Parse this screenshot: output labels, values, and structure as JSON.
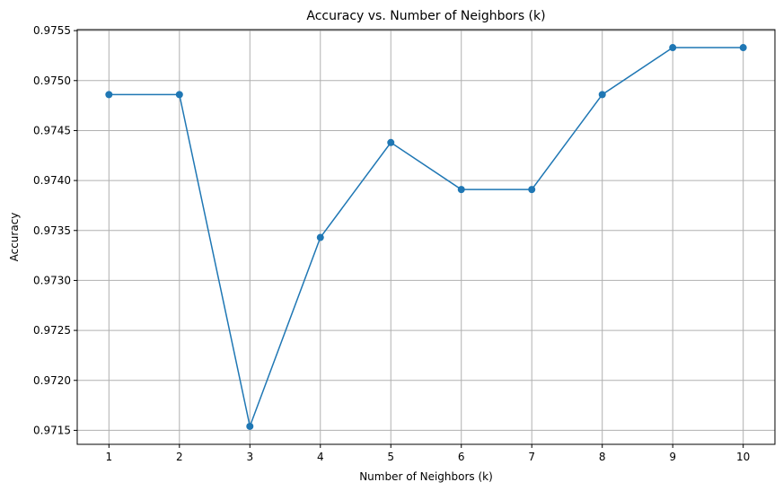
{
  "chart_data": {
    "type": "line",
    "title": "Accuracy vs. Number of Neighbors (k)",
    "xlabel": "Number of Neighbors (k)",
    "ylabel": "Accuracy",
    "x": [
      1,
      2,
      3,
      4,
      5,
      6,
      7,
      8,
      9,
      10
    ],
    "series": [
      {
        "values": [
          0.97486,
          0.97486,
          0.97154,
          0.97343,
          0.97438,
          0.97391,
          0.97391,
          0.97486,
          0.97533,
          0.97533
        ]
      }
    ],
    "xticks": [
      "1",
      "2",
      "3",
      "4",
      "5",
      "6",
      "7",
      "8",
      "9",
      "10"
    ],
    "yticks": [
      0.9715,
      0.972,
      0.9725,
      0.973,
      0.9735,
      0.974,
      0.9745,
      0.975,
      0.9755
    ],
    "ytick_labels": [
      "0.9715",
      "0.9720",
      "0.9725",
      "0.9730",
      "0.9735",
      "0.9740",
      "0.9745",
      "0.9750",
      "0.9755"
    ],
    "xlim": [
      0.55,
      10.45
    ],
    "ylim": [
      0.97136,
      0.97551
    ],
    "grid": true,
    "line_color": "#1f77b4",
    "marker": "circle"
  }
}
